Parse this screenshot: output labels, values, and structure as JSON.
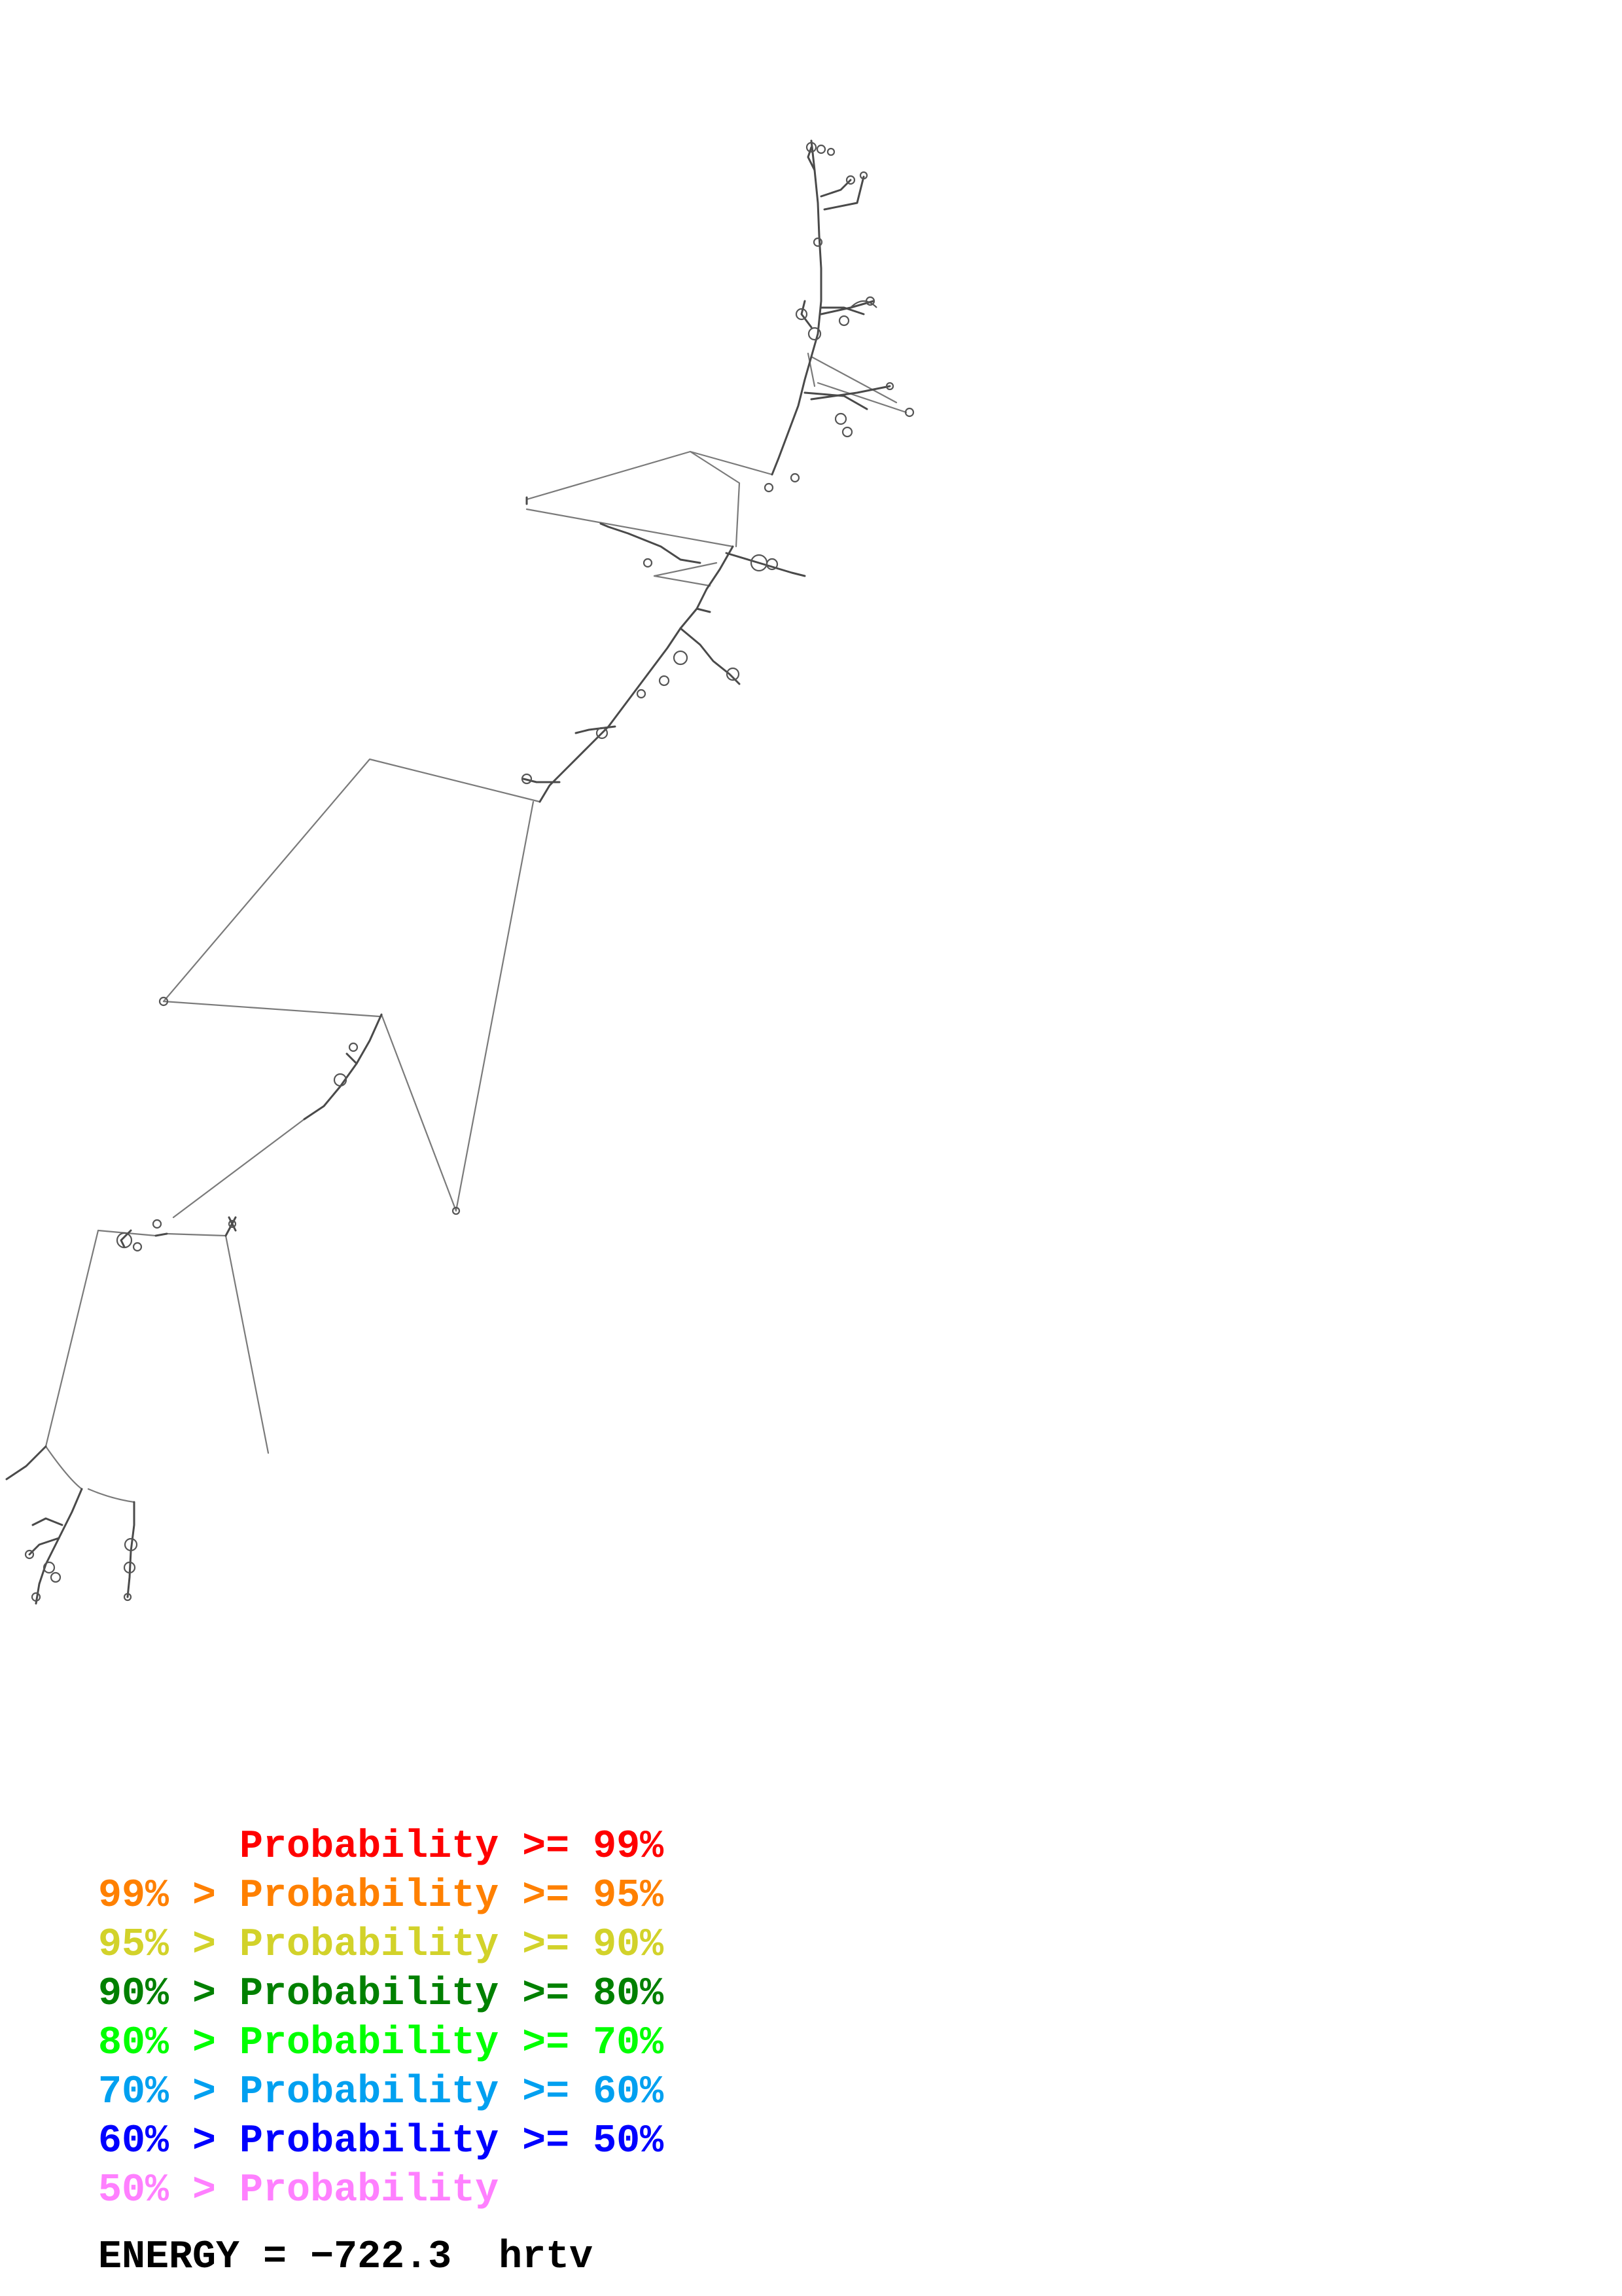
{
  "legend": [
    {
      "threshold": "",
      "label": "Probability",
      "bound": ">= 99%",
      "color": "#ff0000"
    },
    {
      "threshold": "99% >",
      "label": "Probability",
      "bound": ">= 95%",
      "color": "#ff8000"
    },
    {
      "threshold": "95% >",
      "label": "Probability",
      "bound": ">= 90%",
      "color": "#d2d22a"
    },
    {
      "threshold": "90% >",
      "label": "Probability",
      "bound": ">= 80%",
      "color": "#008000"
    },
    {
      "threshold": "80% >",
      "label": "Probability",
      "bound": ">= 70%",
      "color": "#00ff00"
    },
    {
      "threshold": "70% >",
      "label": "Probability",
      "bound": ">= 60%",
      "color": "#00a0f0"
    },
    {
      "threshold": "60% >",
      "label": "Probability",
      "bound": ">= 50%",
      "color": "#0000ff"
    },
    {
      "threshold": "50% >",
      "label": "Probability",
      "bound": "",
      "color": "#ff80ff"
    }
  ],
  "energy": {
    "label": "ENERGY =",
    "value": "−722.3",
    "name": "hrtv"
  }
}
